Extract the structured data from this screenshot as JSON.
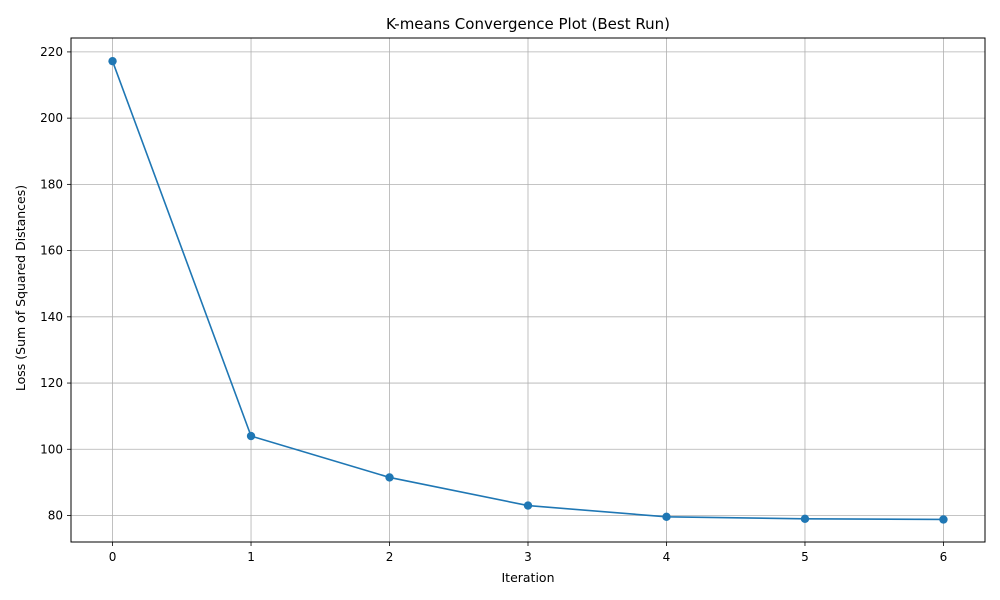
{
  "chart_data": {
    "type": "line",
    "title": "K-means Convergence Plot (Best Run)",
    "xlabel": "Iteration",
    "ylabel": "Loss (Sum of Squared Distances)",
    "x": [
      0,
      1,
      2,
      3,
      4,
      5,
      6
    ],
    "series": [
      {
        "values": [
          217.2,
          104.0,
          91.5,
          83.0,
          79.6,
          79.0,
          78.8
        ],
        "color": "#1f77b4",
        "marker": "circle"
      }
    ],
    "xticks": [
      0,
      1,
      2,
      3,
      4,
      5,
      6
    ],
    "yticks": [
      80,
      100,
      120,
      140,
      160,
      180,
      200,
      220
    ],
    "xlim": [
      -0.3,
      6.3
    ],
    "ylim": [
      72,
      224.2
    ],
    "grid": true,
    "colors": {
      "grid": "#b0b0b0",
      "axes": "#000000"
    }
  }
}
